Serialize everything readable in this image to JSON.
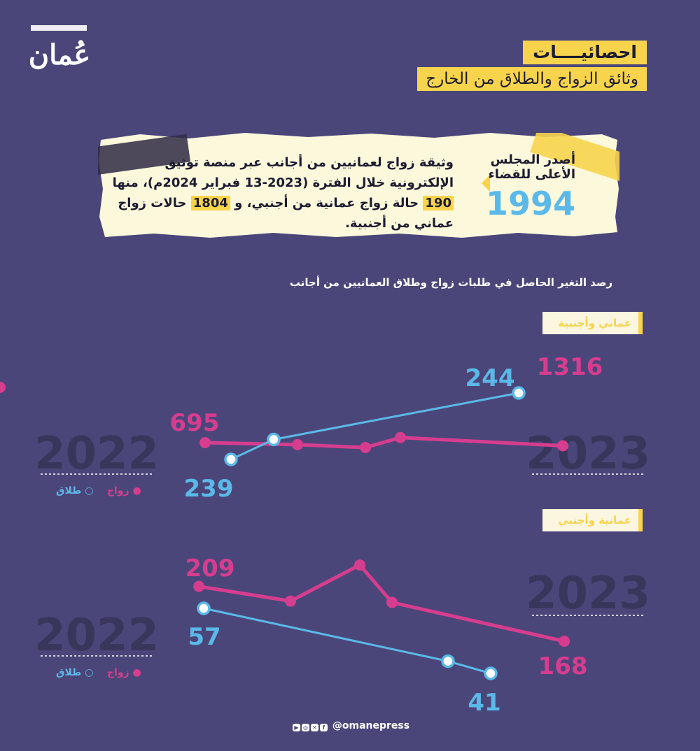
{
  "logo": {
    "text": "عُمان"
  },
  "header": {
    "title": "احصائيــــات",
    "subtitle": "وثائق الزواج والطلاق من الخارج"
  },
  "note": {
    "lead": "أصدر المجلس الأعلى للقضاء",
    "number": "1994",
    "text_parts": [
      "وثيقة زواج لعمانيين من أجانب عبر منصة توثيق الإلكترونية خلال الفترة (2023-13 فبراير 2024م)، منها ",
      "190",
      " حالة زواج عمانية من أجنبي، و ",
      "1804",
      " حالات زواج عماني من أجنبية."
    ]
  },
  "subtitle": "رصد التغير الحاصل في طلبات زواج وطلاق العمانيين من أجانب",
  "legend": {
    "marriage": "زواج",
    "divorce": "طلاق"
  },
  "colors": {
    "marriage": "#d63d8f",
    "divorce": "#5ab9e8",
    "accent": "#f7d44c",
    "background": "#4b4679"
  },
  "chart_data": [
    {
      "type": "line",
      "title": "عماني وأجنبية",
      "x_start_label": "2022",
      "x_end_label": "2023",
      "series": [
        {
          "name": "زواج",
          "points": [
            695,
            672,
            640,
            752,
            660,
            1316
          ],
          "start_label": "695",
          "end_label": "1316"
        },
        {
          "name": "طلاق",
          "points": [
            239,
            240.5,
            244
          ],
          "start_label": "239",
          "end_label": "244"
        }
      ]
    },
    {
      "type": "line",
      "title": "عمانية وأجنبي",
      "x_start_label": "2022",
      "x_end_label": "2023",
      "series": [
        {
          "name": "زواج",
          "points": [
            209,
            198,
            225,
            197,
            168
          ],
          "start_label": "209",
          "end_label": "168"
        },
        {
          "name": "طلاق",
          "points": [
            57,
            44,
            41
          ],
          "start_label": "57",
          "end_label": "41"
        }
      ]
    }
  ],
  "footer": {
    "handle": "@omanepress",
    "icons": [
      "youtube-icon",
      "instagram-icon",
      "x-icon",
      "facebook-icon"
    ]
  }
}
